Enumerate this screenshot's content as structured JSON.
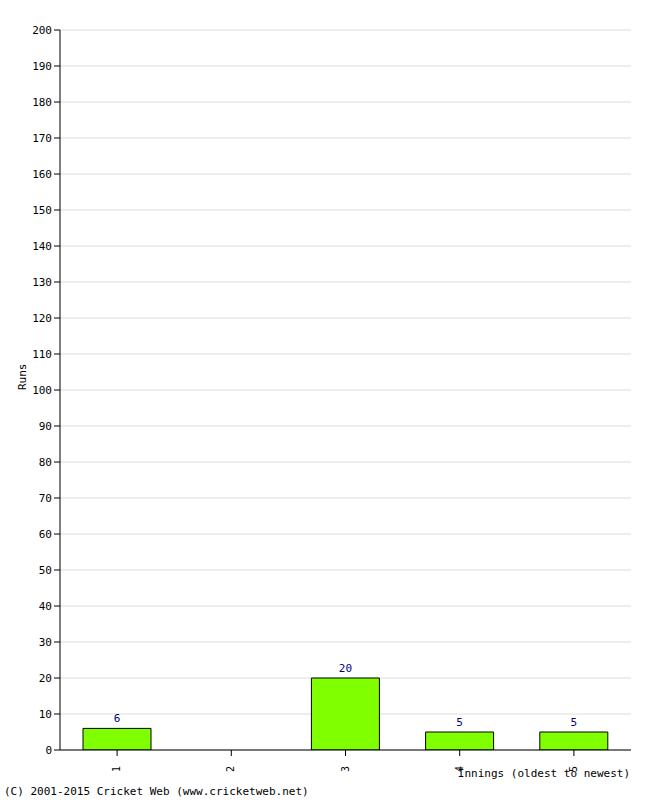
{
  "chart_data": {
    "type": "bar",
    "categories": [
      "1",
      "2",
      "3",
      "4",
      "5"
    ],
    "values": [
      6,
      0,
      20,
      5,
      5
    ],
    "color": "#80ff00",
    "ylim": [
      0,
      200
    ],
    "yticks": [
      0,
      10,
      20,
      30,
      40,
      50,
      60,
      70,
      80,
      90,
      100,
      110,
      120,
      130,
      140,
      150,
      160,
      170,
      180,
      190,
      200
    ],
    "grid": true,
    "data_labels": true,
    "ylabel": "Runs",
    "xlabel": "Innings (oldest to newest)",
    "annotations": [
      "(C) 2001-2015 Cricket Web (www.cricketweb.net)"
    ]
  }
}
